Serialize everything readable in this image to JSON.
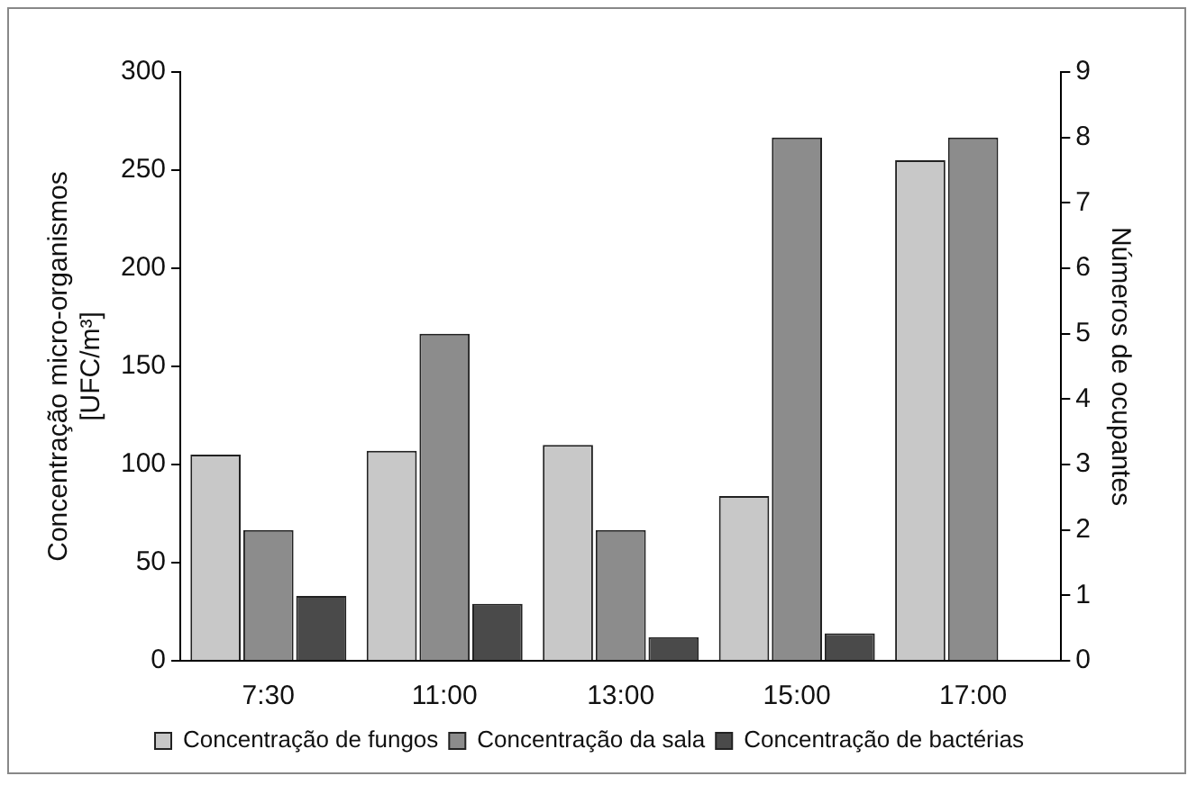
{
  "chart_data": {
    "type": "bar",
    "categories": [
      "7:30",
      "11:00",
      "13:00",
      "15:00",
      "17:00"
    ],
    "series": [
      {
        "name": "Concentração de fungos",
        "color": "#c8c8c8",
        "values": [
          105,
          107,
          110,
          84,
          255
        ]
      },
      {
        "name": "Concentração da sala",
        "color": "#8c8c8c",
        "values": [
          2,
          5,
          2,
          8,
          8
        ],
        "axis": "y2"
      },
      {
        "name": "Concentração de bactérias",
        "color": "#4a4a4a",
        "values": [
          33,
          29,
          12,
          14,
          null
        ]
      }
    ],
    "ylabel": "Concentração micro-organismos [UFC/m³]",
    "y2label": "Números de ocupantes",
    "ylim": [
      0,
      300
    ],
    "yticks": [
      0,
      50,
      100,
      150,
      200,
      250,
      300
    ],
    "y2lim": [
      0,
      9
    ],
    "y2ticks": [
      0,
      1,
      2,
      3,
      4,
      5,
      6,
      7,
      8,
      9
    ],
    "grid": false,
    "legend": "bottom"
  }
}
